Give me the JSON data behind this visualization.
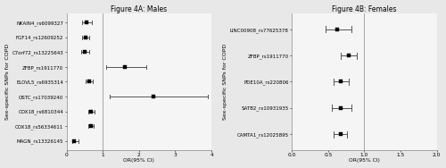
{
  "panel_a": {
    "title": "Figure 4A: Males",
    "snps": [
      "NKAIN4_rs6099327",
      "FGF14_rs12609252",
      "C7orf72_rs13225643",
      "ZFBP_rs1911770",
      "ELOVL5_rs6935314",
      "OSTC_rs17039240",
      "COX18_rs6810344",
      "COX18_rs56334611",
      "MAGN_rs13326145"
    ],
    "or": [
      0.55,
      0.52,
      0.5,
      1.6,
      0.62,
      2.4,
      0.68,
      0.68,
      0.22
    ],
    "ci_low": [
      0.42,
      0.42,
      0.4,
      1.1,
      0.54,
      1.2,
      0.6,
      0.6,
      0.15
    ],
    "ci_high": [
      0.7,
      0.63,
      0.62,
      2.2,
      0.72,
      3.9,
      0.78,
      0.76,
      0.34
    ],
    "xmin": 0,
    "xmax": 4,
    "xticks": [
      0,
      1,
      2,
      3,
      4
    ],
    "xtick_labels": [
      "0",
      "1",
      "2",
      "3",
      "4"
    ],
    "xlabel": "OR(95% CI)",
    "ylabel": "Sex-specific SNPs for COPD",
    "vline": 1.0
  },
  "panel_b": {
    "title": "Figure 4B: Females",
    "snps": [
      "LINC00908_rs77625378",
      "ZFBP_rs1911770",
      "PDE10A_rs220806",
      "SATB2_rs10931935",
      "CAMTA1_rs12025895"
    ],
    "or": [
      0.62,
      0.78,
      0.68,
      0.68,
      0.68
    ],
    "ci_low": [
      0.47,
      0.68,
      0.58,
      0.55,
      0.57
    ],
    "ci_high": [
      0.82,
      0.9,
      0.78,
      0.82,
      0.76
    ],
    "xmin": 0.0,
    "xmax": 2.0,
    "xticks": [
      0.0,
      0.5,
      1.0,
      1.5,
      2.0
    ],
    "xtick_labels": [
      "0.0",
      "0.5",
      "1.0",
      "1.5",
      "2.0"
    ],
    "xlabel": "OR(95% CI)",
    "ylabel": "Sex-specific SNPs for COPD",
    "vline": 1.0
  },
  "marker_size": 3.5,
  "line_color": "#555555",
  "marker_color": "black",
  "bg_color": "#e8e8e8",
  "plot_bg_color": "#f5f5f5",
  "title_fontsize": 5.5,
  "label_fontsize": 4.0,
  "tick_fontsize": 4.2,
  "ylabel_fontsize": 4.5
}
